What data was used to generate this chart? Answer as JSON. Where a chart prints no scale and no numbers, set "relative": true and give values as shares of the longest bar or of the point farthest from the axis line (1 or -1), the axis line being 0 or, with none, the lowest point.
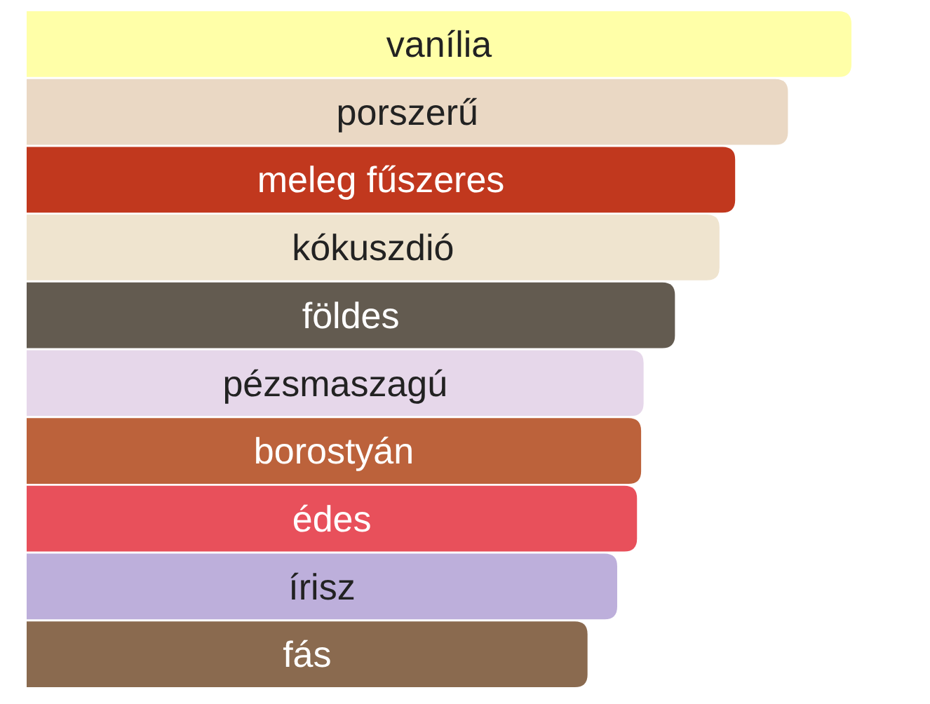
{
  "chart_data": {
    "type": "bar",
    "orientation": "horizontal",
    "relative": true,
    "categories": [
      "vanília",
      "porszerű",
      "meleg fűszeres",
      "kókuszdió",
      "földes",
      "pézsmaszagú",
      "borostyán",
      "édes",
      "írisz",
      "fás"
    ],
    "values": [
      1,
      0.923,
      0.859,
      0.84,
      0.786,
      0.748,
      0.745,
      0.74,
      0.716,
      0.68
    ],
    "colors": [
      "#ffffa8",
      "#ead8c4",
      "#c1381e",
      "#efe4cf",
      "#635b50",
      "#e6d7ea",
      "#bc623b",
      "#e8505b",
      "#bdafdb",
      "#8a6a4f"
    ]
  }
}
